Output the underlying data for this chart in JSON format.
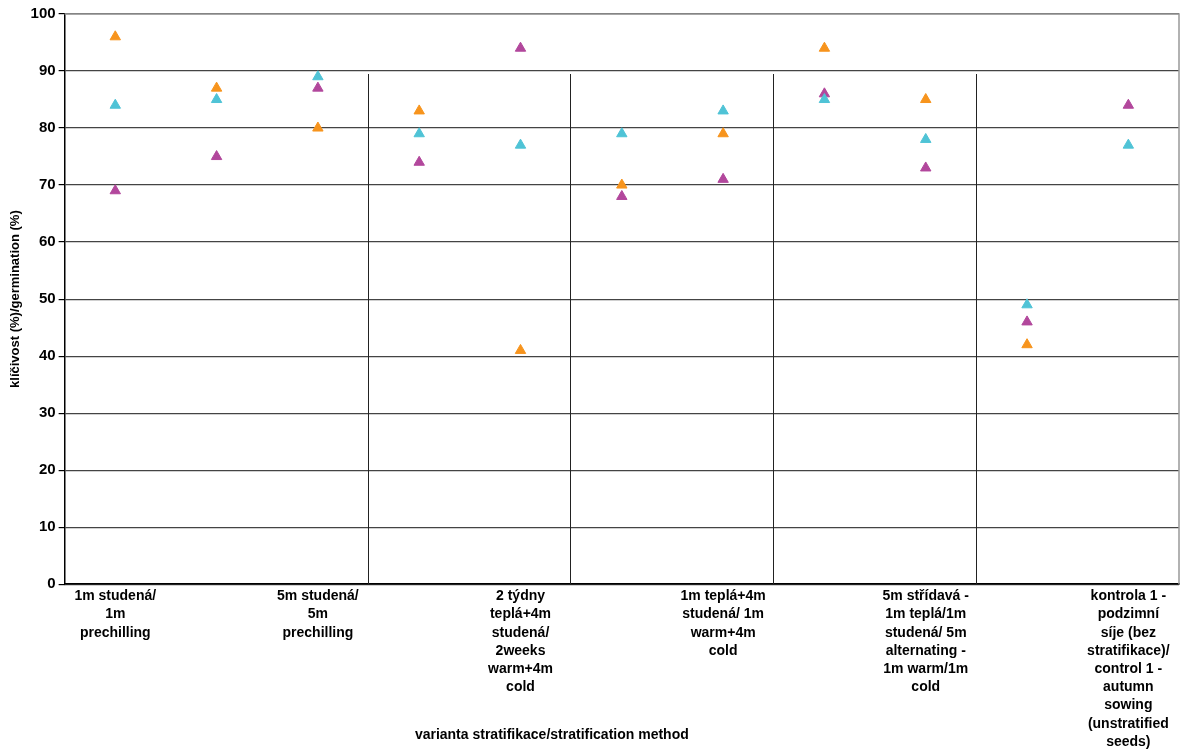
{
  "chart_data": {
    "type": "scatter",
    "xlabel": "varianta stratifikace/stratification method",
    "ylabel": "klíčivost (%)/germination (%)",
    "categories": [
      "1m studená/ 1m prechilling",
      null,
      "5m studená/ 5m prechilling",
      null,
      "2 týdny teplá+4m studená/ 2weeks warm+4m cold",
      null,
      "1m teplá+4m studená/ 1m warm+4m cold",
      null,
      "5m střídavá - 1m teplá/1m studená/ 5m alternating - 1m warm/1m cold",
      null,
      "kontrola 1 - podzimní síje (bez stratifikace)/ control 1 - autumn sowing (unstratified seeds)"
    ],
    "ylim": [
      0,
      100
    ],
    "yticks": [
      0,
      10,
      20,
      30,
      40,
      50,
      60,
      70,
      80,
      90,
      100
    ],
    "grid": "y",
    "legend": false,
    "marker": "triangle",
    "series": [
      {
        "color": "#f7941d",
        "values": [
          96,
          87,
          80,
          83,
          41,
          70,
          79,
          94,
          85,
          42,
          null
        ]
      },
      {
        "color": "#4fc3d6",
        "values": [
          84,
          85,
          89,
          79,
          77,
          79,
          83,
          85,
          78,
          49,
          77
        ]
      },
      {
        "color": "#b2479c",
        "values": [
          69,
          75,
          87,
          74,
          94,
          68,
          71,
          86,
          73,
          46,
          84
        ]
      }
    ]
  }
}
